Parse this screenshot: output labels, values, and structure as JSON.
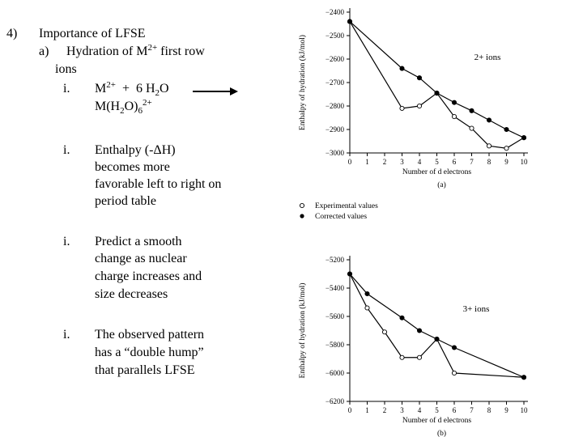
{
  "outline": {
    "number": "4)",
    "heading": "Importance of LFSE",
    "sub_marker": "a)",
    "sub_heading_1": "Hydration of M",
    "sub_heading_1_sup": "2+",
    "sub_heading_1_tail": " first row",
    "sub_heading_2": "ions",
    "bullet_marker": "i.",
    "reaction": {
      "reactant_metal": "M",
      "reactant_metal_sup": "2+",
      "plus": "+",
      "water_coef": "6 H",
      "water_sub": "2",
      "water_o": "O",
      "product_m": "M(H",
      "product_sub": "2",
      "product_o": "O)",
      "product_sub2": "6",
      "product_sup": "2+"
    },
    "bullets": [
      {
        "marker": "i.",
        "lines": [
          "Enthalpy (-ΔH)",
          "becomes more",
          "favorable left to right on",
          "period table"
        ]
      },
      {
        "marker": "i.",
        "lines": [
          "Predict a smooth",
          "change as nuclear",
          "charge increases and",
          "size decreases"
        ]
      },
      {
        "marker": "i.",
        "lines": [
          "The observed pattern",
          "has a “double hump”",
          "that parallels LFSE"
        ]
      }
    ]
  },
  "legend": {
    "experimental": "Experimental values",
    "corrected": "Corrected values"
  },
  "chart_data": [
    {
      "type": "line",
      "panel_label": "(a)",
      "annotation": "2+ ions",
      "xlabel": "Number of d electrons",
      "ylabel": "Enthalpy of hydration (kJ/mol)",
      "xlim": [
        0,
        10
      ],
      "ylim": [
        -3000,
        -2400
      ],
      "xticks": [
        "0",
        "1",
        "2",
        "3",
        "4",
        "5",
        "6",
        "7",
        "8",
        "9",
        "10"
      ],
      "yticks": [
        "−2400",
        "−2500",
        "−2600",
        "−2700",
        "−2800",
        "−2900",
        "−3000"
      ],
      "series": [
        {
          "name": "Experimental values",
          "x": [
            0,
            3,
            4,
            5,
            6,
            7,
            8,
            9,
            10
          ],
          "y": [
            -2440,
            -2810,
            -2800,
            -2745,
            -2845,
            -2895,
            -2970,
            -2980,
            -2935
          ]
        },
        {
          "name": "Corrected values",
          "x": [
            0,
            3,
            4,
            5,
            6,
            7,
            8,
            9,
            10
          ],
          "y": [
            -2440,
            -2640,
            -2680,
            -2745,
            -2785,
            -2820,
            -2860,
            -2900,
            -2935
          ]
        }
      ]
    },
    {
      "type": "line",
      "panel_label": "(b)",
      "annotation": "3+ ions",
      "xlabel": "Number of d electrons",
      "ylabel": "Enthalpy of hydration (kJ/mol)",
      "xlim": [
        0,
        10
      ],
      "ylim": [
        -6200,
        -5200
      ],
      "xticks": [
        "0",
        "1",
        "2",
        "3",
        "4",
        "5",
        "6",
        "7",
        "8",
        "9",
        "10"
      ],
      "yticks": [
        "−5200",
        "−5400",
        "−5600",
        "−5800",
        "−6000",
        "−6200"
      ],
      "series": [
        {
          "name": "Experimental values",
          "x": [
            0,
            1,
            2,
            3,
            4,
            5,
            6,
            10
          ],
          "y": [
            -5300,
            -5540,
            -5710,
            -5890,
            -5890,
            -5760,
            -6000,
            -6030
          ]
        },
        {
          "name": "Corrected values",
          "x": [
            0,
            1,
            3,
            4,
            5,
            6,
            10
          ],
          "y": [
            -5300,
            -5440,
            -5610,
            -5700,
            -5760,
            -5820,
            -6030
          ]
        }
      ]
    }
  ]
}
